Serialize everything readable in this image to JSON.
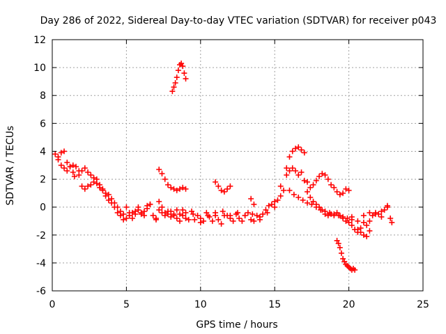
{
  "chart_data": {
    "type": "scatter",
    "title": "Day 286 of 2022, Sidereal Day-to-day VTEC variation (SDTVAR) for receiver p043",
    "xlabel": "GPS time / hours",
    "ylabel": "SDTVAR / TECUs",
    "xlim": [
      0,
      25
    ],
    "ylim": [
      -6,
      12
    ],
    "x_ticks": [
      0,
      5,
      10,
      15,
      20,
      25
    ],
    "y_ticks": [
      -6,
      -4,
      -2,
      0,
      2,
      4,
      6,
      8,
      10,
      12
    ],
    "grid": true,
    "marker": "+",
    "series": [
      {
        "name": "SDTVAR",
        "color": "#ff0000",
        "x": [
          0.2,
          0.4,
          0.6,
          0.8,
          1.0,
          1.2,
          1.4,
          1.5,
          1.8,
          2.0,
          2.2,
          2.4,
          2.6,
          2.8,
          3.0,
          3.2,
          3.4,
          3.6,
          3.8,
          4.0,
          4.2,
          4.4,
          4.6,
          4.8,
          5.0,
          5.2,
          5.4,
          5.6,
          5.8,
          6.0,
          6.2,
          6.4,
          6.6,
          6.8,
          7.0,
          7.2,
          7.4,
          7.6,
          7.8,
          8.0,
          8.2,
          8.4,
          8.6,
          8.8,
          9.0,
          9.2,
          9.4,
          9.6,
          9.8,
          10.0,
          10.2,
          10.4,
          10.6,
          10.8,
          11.0,
          11.2,
          11.4,
          11.6,
          11.8,
          12.0,
          12.2,
          12.4,
          12.6,
          12.8,
          13.0,
          13.2,
          13.4,
          13.6,
          13.8,
          14.0,
          14.2,
          14.4,
          14.6,
          14.8,
          15.0,
          15.2,
          15.4,
          15.6,
          15.8,
          16.0,
          16.2,
          16.4,
          16.6,
          16.8,
          17.0,
          17.2,
          17.4,
          17.6,
          17.8,
          18.0,
          18.2,
          18.4,
          18.6,
          18.8,
          19.0,
          19.2,
          19.4,
          19.6,
          19.8,
          20.0,
          20.2,
          20.4,
          20.6,
          20.8,
          21.0,
          21.2,
          21.4,
          21.6,
          21.8,
          22.0,
          22.2,
          22.4,
          22.6,
          22.8,
          0.4,
          0.6,
          0.8,
          1.0,
          1.2,
          1.4,
          1.6,
          1.8,
          2.0,
          2.2,
          2.4,
          2.6,
          2.8,
          3.0,
          3.2,
          3.4,
          3.6,
          3.8,
          4.0,
          4.2,
          4.4,
          4.6,
          4.8,
          5.0,
          5.2,
          5.4,
          5.6,
          5.8,
          6.0,
          6.2,
          6.4,
          6.6,
          6.8,
          7.0,
          7.2,
          7.4,
          7.6,
          7.8,
          8.0,
          8.2,
          8.4,
          8.6,
          8.8,
          9.0,
          9.5,
          10.0,
          10.5,
          11.0,
          11.5,
          12.0,
          12.5,
          13.0,
          13.5,
          14.0,
          14.5,
          15.0,
          15.4,
          15.8,
          16.0,
          16.2,
          16.4,
          16.6,
          16.8,
          17.0,
          17.2,
          17.4,
          17.6,
          17.8,
          18.0,
          18.2,
          18.4,
          18.6,
          18.8,
          19.0,
          19.2,
          19.4,
          19.6,
          19.8,
          20.0,
          20.2,
          20.6,
          21.0,
          21.4,
          21.8,
          22.2,
          22.6,
          22.9,
          8.1,
          8.2,
          8.3,
          8.4,
          8.5,
          8.6,
          8.7,
          8.8,
          8.9,
          9.0,
          7.2,
          7.4,
          7.6,
          7.8,
          8.0,
          8.2,
          8.4,
          8.6,
          8.8,
          9.0,
          11.0,
          11.2,
          11.4,
          11.6,
          11.8,
          12.0,
          13.4,
          13.6,
          19.2,
          19.3,
          19.4,
          19.5,
          19.6,
          19.7,
          19.8,
          19.9,
          20.0,
          20.1,
          20.2,
          20.3,
          20.4,
          20.6,
          20.8,
          21.0,
          21.2,
          21.4,
          16.0,
          16.3,
          16.6,
          16.9,
          17.2,
          17.5,
          17.8,
          18.1,
          18.4,
          18.7,
          19.0,
          19.3,
          19.6,
          19.9,
          20.2
        ],
        "y": [
          3.8,
          3.6,
          3.9,
          4.0,
          3.2,
          2.9,
          2.5,
          2.2,
          2.3,
          2.6,
          2.8,
          2.5,
          2.3,
          2.1,
          2.0,
          1.6,
          1.3,
          1.0,
          0.9,
          0.6,
          0.3,
          0.0,
          -0.3,
          -0.5,
          0.0,
          -0.4,
          -0.8,
          -0.3,
          0.0,
          -0.5,
          -0.6,
          0.1,
          0.2,
          -0.6,
          -0.8,
          0.4,
          0.0,
          -0.4,
          -0.3,
          -0.7,
          -0.6,
          -0.2,
          -1.0,
          -0.6,
          -0.8,
          -0.9,
          -0.3,
          -0.9,
          -0.6,
          -1.1,
          -1.0,
          -0.4,
          -0.7,
          -1.0,
          -0.6,
          -0.9,
          -1.2,
          -0.6,
          -0.6,
          -0.8,
          -1.0,
          -0.5,
          -0.8,
          -1.0,
          -0.6,
          -0.4,
          -0.9,
          -1.0,
          -0.6,
          -0.7,
          -0.5,
          -0.2,
          0.1,
          0.2,
          0.4,
          0.5,
          0.8,
          1.2,
          2.3,
          2.6,
          2.8,
          2.6,
          2.3,
          2.5,
          1.9,
          1.1,
          0.7,
          0.4,
          0.2,
          0.0,
          -0.2,
          -0.5,
          -0.6,
          -0.5,
          -0.6,
          -0.4,
          -0.6,
          -0.8,
          -1.0,
          -1.1,
          -1.3,
          -1.6,
          -1.8,
          -1.5,
          -1.1,
          -1.3,
          -1.0,
          -0.6,
          -0.4,
          -0.5,
          -0.7,
          -0.2,
          0.0,
          -0.8,
          3.4,
          3.0,
          2.8,
          2.6,
          2.9,
          3.0,
          2.9,
          2.6,
          1.5,
          1.3,
          1.5,
          1.6,
          1.8,
          1.7,
          1.4,
          1.2,
          0.8,
          0.5,
          0.3,
          0.0,
          -0.4,
          -0.6,
          -0.9,
          -0.8,
          -0.6,
          -0.4,
          -0.5,
          -0.2,
          -0.4,
          -0.3,
          -0.1,
          0.2,
          -0.6,
          -0.9,
          -0.2,
          -0.4,
          -0.6,
          -0.5,
          -0.3,
          -0.5,
          -0.8,
          -0.5,
          -0.2,
          -0.4,
          -0.5,
          -0.8,
          -0.6,
          -0.4,
          -0.3,
          -0.6,
          -0.4,
          -0.6,
          -0.5,
          -0.9,
          -0.4,
          0.0,
          1.5,
          2.8,
          3.6,
          4.0,
          4.2,
          4.3,
          4.1,
          3.9,
          1.8,
          1.4,
          1.6,
          1.9,
          2.2,
          2.4,
          2.3,
          2.0,
          1.6,
          1.4,
          1.1,
          0.9,
          1.0,
          1.3,
          1.2,
          -0.7,
          -1.0,
          -0.6,
          -0.4,
          -0.5,
          -0.3,
          0.1,
          -1.1,
          8.3,
          8.6,
          8.9,
          9.3,
          9.8,
          10.2,
          10.3,
          10.1,
          9.6,
          9.2,
          2.7,
          2.4,
          2.0,
          1.6,
          1.4,
          1.3,
          1.2,
          1.3,
          1.4,
          1.3,
          1.8,
          1.5,
          1.2,
          1.1,
          1.3,
          1.5,
          0.6,
          0.2,
          -2.4,
          -2.6,
          -2.9,
          -3.3,
          -3.7,
          -3.9,
          -4.1,
          -4.2,
          -4.3,
          -4.4,
          -4.5,
          -4.4,
          -4.5,
          -1.6,
          -1.8,
          -2.0,
          -2.1,
          -1.7,
          1.2,
          0.9,
          0.7,
          0.5,
          0.3,
          0.2,
          0.0,
          -0.2,
          -0.3,
          -0.4,
          -0.5,
          -0.6,
          -0.7,
          -0.8,
          -0.9
        ]
      }
    ]
  }
}
